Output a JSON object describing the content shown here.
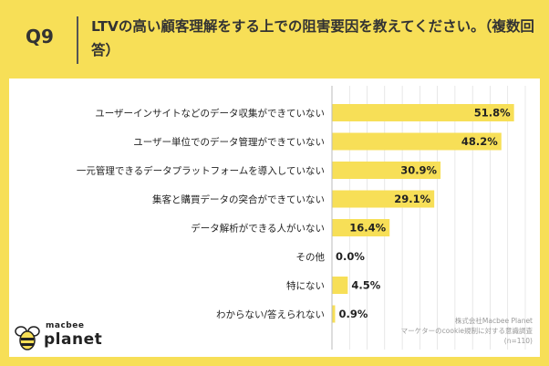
{
  "question": {
    "number": "Q9",
    "title": "LTVの高い顧客理解をする上での阻害要因を教えてください。（複数回答）"
  },
  "chart_data": {
    "type": "bar",
    "orientation": "horizontal",
    "categories": [
      "ユーザーインサイトなどのデータ収集ができていない",
      "ユーザー単位でのデータ管理ができていない",
      "一元管理できるデータプラットフォームを導入していない",
      "集客と購買データの突合ができていない",
      "データ解析ができる人がいない",
      "その他",
      "特にない",
      "わからない/答えられない"
    ],
    "values": [
      51.8,
      48.2,
      30.9,
      29.1,
      16.4,
      0.0,
      4.5,
      0.9
    ],
    "value_labels": [
      "51.8%",
      "48.2%",
      "30.9%",
      "29.1%",
      "16.4%",
      "0.0%",
      "4.5%",
      "0.9%"
    ],
    "unit": "%",
    "xlim": [
      0,
      55
    ],
    "bar_color": "#f7df57",
    "grid": true
  },
  "source": {
    "company": "株式会社Macbee Planet",
    "survey": "マーケターのcookie規制に対する意識調査",
    "sample": "(n=110)"
  },
  "logo": {
    "top": "macbee",
    "bottom": "planet"
  },
  "colors": {
    "background": "#f7df57",
    "bar": "#f7df57",
    "grid": "#d9d9d9"
  }
}
